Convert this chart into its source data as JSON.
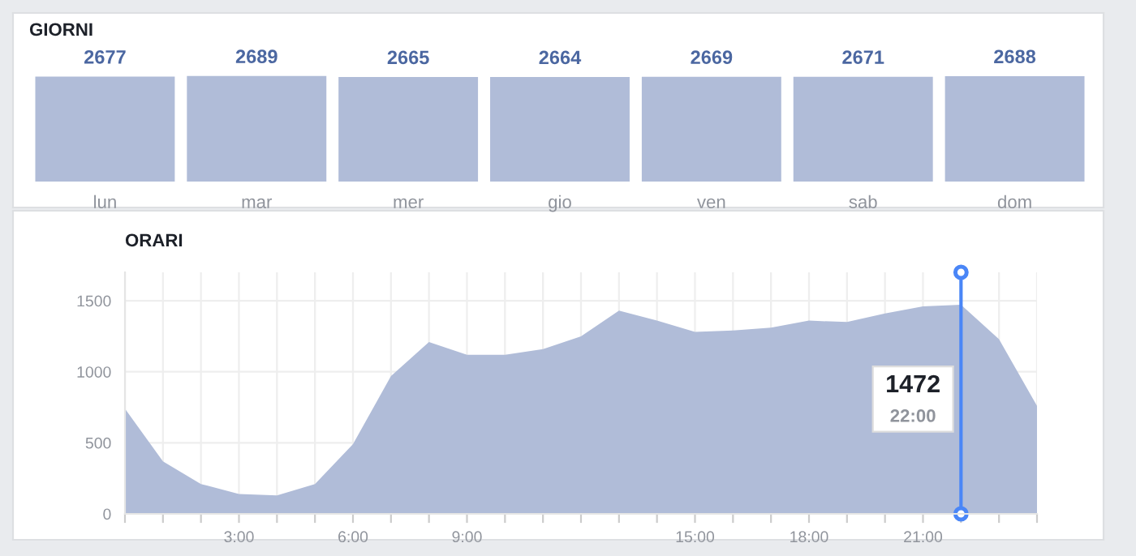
{
  "chart_data": [
    {
      "type": "bar",
      "title": "GIORNI",
      "categories": [
        "lun",
        "mar",
        "mer",
        "gio",
        "ven",
        "sab",
        "dom"
      ],
      "values": [
        2677,
        2689,
        2665,
        2664,
        2669,
        2671,
        2688
      ],
      "color": "#b0bcd8",
      "data_labels": true,
      "tick_labels": "x",
      "grid": false,
      "legend": false
    },
    {
      "type": "area",
      "title": "ORARI",
      "x": [
        0,
        1,
        2,
        3,
        4,
        5,
        6,
        7,
        8,
        9,
        10,
        11,
        12,
        13,
        14,
        15,
        16,
        17,
        18,
        19,
        20,
        21,
        22,
        23,
        24
      ],
      "values": [
        740,
        370,
        210,
        140,
        130,
        210,
        490,
        970,
        1210,
        1120,
        1120,
        1160,
        1250,
        1430,
        1360,
        1280,
        1290,
        1310,
        1360,
        1350,
        1410,
        1460,
        1472,
        1230,
        760
      ],
      "color": "#b0bcd8",
      "xlim": [
        0,
        24
      ],
      "ylim": [
        0,
        1700
      ],
      "yticks": [
        0,
        500,
        1000,
        1500
      ],
      "xticks": [
        {
          "value": 0,
          "label": null
        },
        {
          "value": 1,
          "label": null
        },
        {
          "value": 2,
          "label": null
        },
        {
          "value": 3,
          "label": "3:00"
        },
        {
          "value": 4,
          "label": null
        },
        {
          "value": 5,
          "label": null
        },
        {
          "value": 6,
          "label": "6:00"
        },
        {
          "value": 7,
          "label": null
        },
        {
          "value": 8,
          "label": null
        },
        {
          "value": 9,
          "label": "9:00"
        },
        {
          "value": 10,
          "label": null
        },
        {
          "value": 11,
          "label": null
        },
        {
          "value": 12,
          "label": null
        },
        {
          "value": 13,
          "label": null
        },
        {
          "value": 14,
          "label": null
        },
        {
          "value": 15,
          "label": "15:00"
        },
        {
          "value": 16,
          "label": null
        },
        {
          "value": 17,
          "label": null
        },
        {
          "value": 18,
          "label": "18:00"
        },
        {
          "value": 19,
          "label": null
        },
        {
          "value": 20,
          "label": null
        },
        {
          "value": 21,
          "label": "21:00"
        },
        {
          "value": 22,
          "label": null
        },
        {
          "value": 23,
          "label": null
        },
        {
          "value": 24,
          "label": null
        }
      ],
      "grid": true,
      "legend": false,
      "ref_lines": [
        {
          "axis": "x",
          "value": 22,
          "label": null,
          "color": "#4a86f7"
        }
      ],
      "annotations": [
        "1472",
        "22:00"
      ]
    }
  ]
}
